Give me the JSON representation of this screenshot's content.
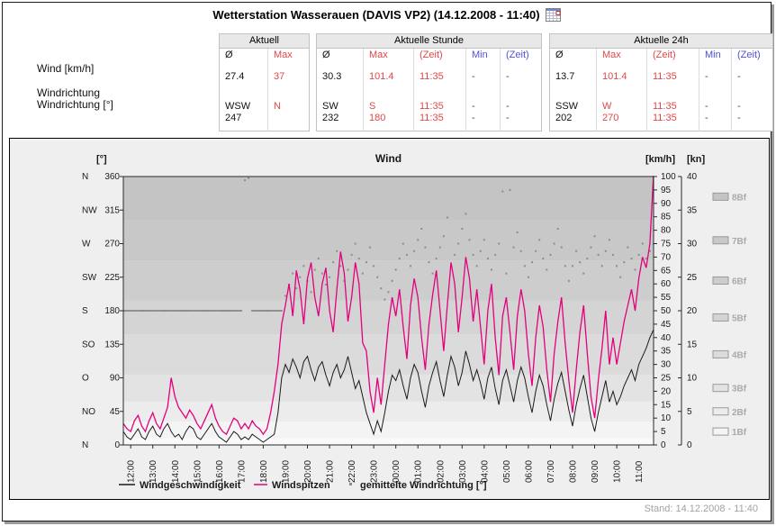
{
  "page": {
    "title": "Wetterstation Wasserauen (DAVIS VP2) (14.12.2008 - 11:40)",
    "stand": "Stand: 14.12.2008 - 11:40"
  },
  "colors": {
    "red": "#e04848",
    "blue": "#5050d8",
    "windspitzen_pink": "#e3007d",
    "windgeschwindigkeit_black": "#1a1a1a",
    "direction_dot_gray": "#8c8c8c",
    "chart_bg": "#efefef"
  },
  "summary": {
    "row_labels": [
      "Wind [km/h]",
      "Windrichtung",
      "Windrichtung [°]"
    ],
    "t1": {
      "title": "Aktuell",
      "h": [
        "Ø",
        "Max"
      ],
      "wind": [
        "27.4",
        "37"
      ],
      "dir1": [
        "WSW",
        "N"
      ],
      "dir2": [
        "247",
        ""
      ]
    },
    "t2": {
      "title": "Aktuelle Stunde",
      "h": [
        "Ø",
        "Max",
        "(Zeit)",
        "Min",
        "(Zeit)"
      ],
      "wind": [
        "30.3",
        "101.4",
        "11:35",
        "-",
        "-"
      ],
      "dir1": [
        "SW",
        "S",
        "11:35",
        "-",
        "-"
      ],
      "dir2": [
        "232",
        "180",
        "11:35",
        "-",
        "-"
      ]
    },
    "t3": {
      "title": "Aktuelle 24h",
      "h": [
        "Ø",
        "Max",
        "(Zeit)",
        "Min",
        "(Zeit)"
      ],
      "wind": [
        "13.7",
        "101.4",
        "11:35",
        "-",
        "-"
      ],
      "dir1": [
        "SSW",
        "W",
        "11:35",
        "-",
        "-"
      ],
      "dir2": [
        "202",
        "270",
        "11:35",
        "-",
        "-"
      ]
    }
  },
  "chart_data": {
    "type": "line",
    "title": "Wind",
    "sample_interval_min": 10,
    "time_span": "11:40 - 11:35 (24h)",
    "x_axis": {
      "tick_labels": [
        "12:00",
        "13:00",
        "14:00",
        "15:00",
        "16:00",
        "17:00",
        "18:00",
        "19:00",
        "20:00",
        "21:00",
        "22:00",
        "23:00",
        "00:00",
        "01:00",
        "02:00",
        "03:00",
        "04:00",
        "05:00",
        "06:00",
        "07:00",
        "08:00",
        "09:00",
        "10:00",
        "11:00"
      ]
    },
    "y_left": {
      "label": "[°]",
      "range": [
        0,
        360
      ],
      "compass": [
        "N",
        "NW",
        "W",
        "SW",
        "S",
        "SO",
        "O",
        "NO",
        "N"
      ],
      "degrees": [
        360,
        315,
        270,
        225,
        180,
        135,
        90,
        45,
        0
      ]
    },
    "y_right_kmh": {
      "label": "[km/h]",
      "range": [
        0,
        100
      ],
      "step": 5
    },
    "y_right_kn": {
      "label": "[kn]",
      "range": [
        0,
        40
      ],
      "step": 5
    },
    "beaufort": {
      "labels": [
        "1Bf",
        "2Bf",
        "3Bf",
        "4Bf",
        "5Bf",
        "6Bf",
        "7Bf",
        "8Bf"
      ],
      "kn_bounds": [
        0,
        1,
        3.5,
        6.5,
        10.5,
        16.5,
        21.5,
        27.5,
        33.5,
        40
      ],
      "kn_mids": [
        2,
        5,
        8.5,
        13.5,
        19,
        24.5,
        30.5,
        37
      ],
      "band_colors": [
        "#fafafa",
        "#f4f4f4",
        "#ececec",
        "#e3e3e3",
        "#dbdbdb",
        "#d4d4d4",
        "#cdcdcd",
        "#c8c8c8",
        "#c4c4c4"
      ]
    },
    "legend": {
      "position": "bottom"
    },
    "series": [
      {
        "name": "Windgeschwindigkeit",
        "type": "line",
        "unit": "km/h",
        "color": "#1a1a1a",
        "values": [
          5,
          3,
          2,
          4,
          6,
          3,
          2,
          5,
          7,
          4,
          3,
          6,
          8,
          5,
          3,
          4,
          2,
          5,
          7,
          6,
          3,
          2,
          4,
          6,
          8,
          5,
          3,
          2,
          1,
          3,
          5,
          4,
          2,
          3,
          2,
          4,
          3,
          2,
          1,
          2,
          3,
          4,
          12,
          25,
          30,
          27,
          32,
          29,
          25,
          31,
          33,
          28,
          24,
          29,
          31,
          26,
          22,
          27,
          30,
          25,
          28,
          33,
          27,
          21,
          24,
          18,
          12,
          8,
          4,
          9,
          5,
          12,
          20,
          26,
          24,
          28,
          22,
          17,
          25,
          30,
          27,
          20,
          14,
          22,
          27,
          31,
          24,
          18,
          26,
          33,
          29,
          22,
          27,
          35,
          30,
          24,
          28,
          23,
          17,
          25,
          29,
          21,
          15,
          24,
          28,
          22,
          16,
          24,
          29,
          25,
          18,
          12,
          20,
          26,
          22,
          15,
          9,
          17,
          23,
          27,
          20,
          13,
          7,
          15,
          21,
          26,
          18,
          10,
          5,
          12,
          18,
          24,
          16,
          20,
          15,
          18,
          22,
          25,
          28,
          24,
          30,
          33,
          36,
          40,
          43
        ]
      },
      {
        "name": "Windspitzen",
        "type": "line",
        "unit": "km/h",
        "color": "#e3007d",
        "values": [
          8,
          6,
          5,
          9,
          11,
          7,
          5,
          9,
          12,
          8,
          6,
          10,
          14,
          25,
          18,
          14,
          12,
          10,
          13,
          11,
          8,
          6,
          9,
          12,
          15,
          10,
          7,
          5,
          4,
          7,
          10,
          9,
          6,
          8,
          6,
          9,
          7,
          6,
          4,
          6,
          12,
          20,
          30,
          45,
          52,
          60,
          48,
          65,
          58,
          45,
          62,
          68,
          55,
          48,
          60,
          66,
          50,
          42,
          58,
          72,
          64,
          46,
          55,
          68,
          60,
          38,
          35,
          20,
          12,
          25,
          15,
          30,
          45,
          55,
          48,
          58,
          44,
          32,
          52,
          62,
          55,
          40,
          28,
          45,
          56,
          65,
          50,
          35,
          52,
          68,
          60,
          42,
          55,
          70,
          62,
          46,
          58,
          44,
          30,
          50,
          60,
          40,
          26,
          48,
          55,
          42,
          28,
          48,
          58,
          50,
          34,
          22,
          40,
          52,
          44,
          28,
          16,
          34,
          46,
          55,
          38,
          24,
          12,
          28,
          42,
          52,
          34,
          18,
          10,
          24,
          36,
          50,
          30,
          40,
          30,
          38,
          46,
          52,
          58,
          50,
          62,
          70,
          66,
          75,
          101
        ]
      },
      {
        "name": "gemittelte Windrichtung [°]",
        "type": "scatter",
        "unit": "deg",
        "color": "#8c8c8c",
        "values": [
          180,
          180,
          180,
          180,
          180,
          180,
          180,
          180,
          180,
          180,
          180,
          180,
          180,
          180,
          180,
          180,
          180,
          180,
          180,
          180,
          180,
          180,
          180,
          180,
          180,
          180,
          180,
          180,
          180,
          180,
          180,
          180,
          180,
          355,
          358,
          180,
          180,
          180,
          180,
          180,
          180,
          180,
          180,
          180,
          200,
          215,
          230,
          210,
          225,
          240,
          220,
          205,
          235,
          250,
          230,
          215,
          225,
          245,
          260,
          240,
          220,
          235,
          255,
          270,
          250,
          230,
          245,
          265,
          240,
          225,
          210,
          195,
          205,
          220,
          235,
          250,
          270,
          255,
          240,
          260,
          275,
          290,
          265,
          245,
          230,
          250,
          265,
          280,
          305,
          240,
          255,
          270,
          290,
          310,
          275,
          255,
          240,
          260,
          275,
          250,
          235,
          255,
          270,
          340,
          230,
          342,
          265,
          285,
          260,
          240,
          225,
          245,
          260,
          275,
          250,
          235,
          255,
          270,
          290,
          265,
          240,
          220,
          240,
          260,
          245,
          230,
          250,
          265,
          280,
          255,
          240,
          260,
          275,
          255,
          240,
          225,
          245,
          265,
          250,
          235,
          255,
          270,
          250,
          260,
          270
        ]
      }
    ]
  }
}
